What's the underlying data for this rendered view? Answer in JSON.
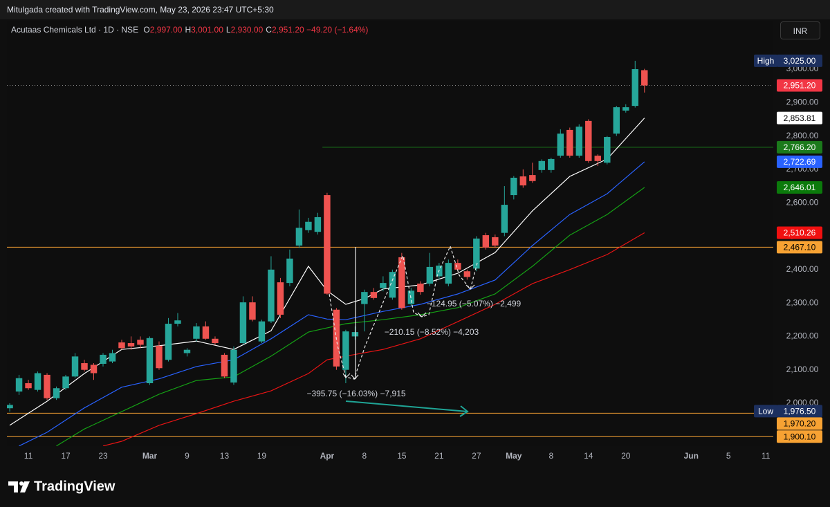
{
  "header": {
    "caption": "Mitulgada created with TradingView.com, May 23, 2026 23:47 UTC+5:30"
  },
  "legend": {
    "symbol": "Acutaas Chemicals Ltd · 1D · NSE",
    "ohlc": [
      {
        "key": "O",
        "value": "2,997.00"
      },
      {
        "key": "H",
        "value": "3,001.00"
      },
      {
        "key": "L",
        "value": "2,930.00"
      },
      {
        "key": "C",
        "value": "2,951.20"
      }
    ],
    "change": "−49.20 (−1.64%)"
  },
  "currency": "INR",
  "brand": "TradingView",
  "chart_data": {
    "type": "candlestick",
    "up_color": "#26a69a",
    "down_color": "#ef5350",
    "categories": [
      null,
      null,
      "11",
      null,
      null,
      null,
      "17",
      null,
      null,
      null,
      "23",
      null,
      null,
      null,
      null,
      "Mar",
      null,
      null,
      null,
      "9",
      null,
      null,
      null,
      "13",
      null,
      null,
      null,
      "19",
      null,
      null,
      null,
      null,
      null,
      null,
      "Apr",
      null,
      null,
      null,
      "8",
      null,
      null,
      null,
      "15",
      null,
      null,
      null,
      "21",
      null,
      null,
      null,
      "27",
      null,
      null,
      null,
      "May",
      null,
      null,
      null,
      "8",
      null,
      null,
      null,
      "14",
      null,
      null,
      null,
      "20",
      null,
      null,
      null,
      null,
      null,
      null,
      "Jun",
      null,
      null,
      null,
      "5",
      null,
      null,
      null,
      "11"
    ],
    "open": [
      1985,
      2035,
      2060,
      2040,
      2085,
      2015,
      2045,
      2080,
      2120,
      2115,
      2118,
      2125,
      2182,
      2180,
      2190,
      2060,
      2172,
      2130,
      2238,
      2150,
      2193,
      2230,
      2193,
      2145,
      2062,
      2180,
      2302,
      2185,
      2245,
      2362,
      2360,
      2472,
      2518,
      2513,
      2623,
      2280,
      2100,
      2200,
      2297,
      2333,
      2345,
      2316,
      2437,
      2297,
      2358,
      2358,
      2380,
      2358,
      2420,
      2395,
      2403,
      2503,
      2497,
      2510,
      2623,
      2679,
      2683,
      2698,
      2698,
      2741,
      2818,
      2741,
      2845,
      2741,
      2720,
      2807,
      2876,
      2890,
      2997,
      null,
      null,
      null,
      null,
      null,
      null,
      null,
      null,
      null,
      null,
      null,
      null,
      null
    ],
    "high": [
      2000,
      2085,
      2070,
      2095,
      2090,
      2050,
      2085,
      2150,
      2130,
      2120,
      2150,
      2160,
      2190,
      2200,
      2200,
      2200,
      2185,
      2255,
      2270,
      2165,
      2240,
      2245,
      2200,
      2150,
      2170,
      2320,
      2320,
      2250,
      2440,
      2375,
      2460,
      2580,
      2555,
      2570,
      2630,
      2285,
      2220,
      2230,
      2340,
      2345,
      2380,
      2400,
      2450,
      2345,
      2365,
      2450,
      2420,
      2430,
      2430,
      2400,
      2500,
      2510,
      2505,
      2650,
      2680,
      2700,
      2720,
      2730,
      2735,
      2820,
      2825,
      2835,
      2850,
      2745,
      2800,
      2890,
      2895,
      3025,
      3001,
      null,
      null,
      null,
      null,
      null,
      null,
      null,
      null,
      null,
      null,
      null,
      null,
      null
    ],
    "low": [
      1975,
      2025,
      2040,
      2035,
      2010,
      2010,
      2040,
      2075,
      2095,
      2070,
      2110,
      2120,
      2160,
      2160,
      2165,
      2055,
      2100,
      2125,
      2230,
      2140,
      2185,
      2190,
      2175,
      2075,
      2055,
      2175,
      2245,
      2180,
      2240,
      2255,
      2350,
      2465,
      2510,
      2505,
      2325,
      2100,
      2060,
      2190,
      2215,
      2310,
      2335,
      2310,
      2280,
      2290,
      2325,
      2350,
      2370,
      2350,
      2395,
      2370,
      2395,
      2460,
      2465,
      2500,
      2610,
      2645,
      2660,
      2690,
      2690,
      2735,
      2735,
      2735,
      2720,
      2710,
      2715,
      2800,
      2870,
      2885,
      2930,
      null,
      null,
      null,
      null,
      null,
      null,
      null,
      null,
      null,
      null,
      null,
      null,
      null
    ],
    "close": [
      1995,
      2075,
      2045,
      2090,
      2015,
      2045,
      2080,
      2140,
      2100,
      2090,
      2145,
      2150,
      2165,
      2170,
      2175,
      2195,
      2105,
      2238,
      2248,
      2160,
      2230,
      2193,
      2180,
      2080,
      2160,
      2302,
      2250,
      2245,
      2400,
      2265,
      2433,
      2525,
      2543,
      2557,
      2328,
      2110,
      2215,
      2213,
      2333,
      2315,
      2360,
      2393,
      2285,
      2337,
      2333,
      2408,
      2412,
      2420,
      2400,
      2378,
      2493,
      2466,
      2472,
      2594,
      2675,
      2652,
      2665,
      2725,
      2731,
      2807,
      2741,
      2828,
      2725,
      2725,
      2797,
      2886,
      2886,
      3000,
      2951.2,
      null,
      null,
      null,
      null,
      null,
      null,
      null,
      null,
      null,
      null,
      null,
      null,
      null
    ],
    "series": [
      {
        "color": "#ffffff",
        "x": [
          0,
          4,
          8,
          12,
          16,
          20,
          24,
          28,
          32,
          34,
          36,
          38,
          40,
          44,
          48,
          52,
          56,
          60,
          64,
          68
        ],
        "values": [
          1934,
          2006,
          2089,
          2161,
          2172,
          2186,
          2161,
          2217,
          2410,
          2337,
          2296,
          2313,
          2342,
          2354,
          2389,
          2451,
          2576,
          2679,
          2731,
          2853.81
        ]
      },
      {
        "color": "#2962ff",
        "x": [
          1,
          4,
          8,
          12,
          16,
          20,
          24,
          28,
          32,
          34,
          36,
          40,
          44,
          48,
          52,
          56,
          60,
          64,
          68
        ],
        "values": [
          1872,
          1913,
          1986,
          2048,
          2073,
          2110,
          2130,
          2193,
          2265,
          2252,
          2250,
          2275,
          2296,
          2327,
          2369,
          2472,
          2565,
          2627,
          2722.69
        ]
      },
      {
        "color": "#15a015",
        "x": [
          5,
          8,
          12,
          16,
          20,
          24,
          28,
          32,
          36,
          40,
          44,
          48,
          52,
          56,
          60,
          64,
          68
        ],
        "values": [
          1872,
          1923,
          1975,
          2027,
          2068,
          2079,
          2141,
          2213,
          2238,
          2250,
          2265,
          2286,
          2327,
          2410,
          2503,
          2565,
          2646.01
        ]
      },
      {
        "color": "#e81414",
        "x": [
          10,
          12,
          16,
          20,
          24,
          28,
          32,
          34,
          36,
          40,
          44,
          48,
          52,
          56,
          60,
          64,
          68
        ],
        "values": [
          1872,
          1886,
          1934,
          1969,
          2006,
          2037,
          2089,
          2130,
          2141,
          2161,
          2193,
          2244,
          2296,
          2358,
          2400,
          2445,
          2510.26
        ]
      }
    ],
    "xlim": [
      -0.3,
      81.8
    ],
    "ylim": [
      1871.6,
      3144.9
    ],
    "yticks": [
      {
        "value": 2000,
        "label": "2,000.00"
      },
      {
        "value": 2100,
        "label": "2,100.00"
      },
      {
        "value": 2200,
        "label": "2,200.00"
      },
      {
        "value": 2300,
        "label": "2,300.00"
      },
      {
        "value": 2400,
        "label": "2,400.00"
      },
      {
        "value": 2500,
        "label": "2,500.00"
      },
      {
        "value": 2600,
        "label": "2,600.00"
      },
      {
        "value": 2700,
        "label": "2,700.00"
      },
      {
        "value": 2800,
        "label": "2,800.00"
      },
      {
        "value": 2900,
        "label": "2,900.00"
      },
      {
        "value": 3000,
        "label": "3,000.00"
      }
    ],
    "grid": false,
    "price_levels": [
      {
        "value": 3025,
        "label": "3,025.00",
        "tag": "High",
        "color": "#1c2f5e",
        "text_color": "#ffffff"
      },
      {
        "value": 2951.2,
        "label": "2,951.20",
        "color": "#f23645",
        "text_color": "#ffffff",
        "line": "dotted"
      },
      {
        "value": 2853.81,
        "label": "2,853.81",
        "color": "#ffffff",
        "text_color": "#000000"
      },
      {
        "value": 2766.2,
        "label": "2,766.20",
        "color": "#1b7a1b",
        "text_color": "#ffffff",
        "line": "ray"
      },
      {
        "value": 2722.69,
        "label": "2,722.69",
        "color": "#2962ff",
        "text_color": "#ffffff"
      },
      {
        "value": 2646.01,
        "label": "2,646.01",
        "color": "#0b7a0b",
        "text_color": "#ffffff"
      },
      {
        "value": 2510.26,
        "label": "2,510.26",
        "color": "#f01010",
        "text_color": "#ffffff"
      },
      {
        "value": 2467.1,
        "label": "2,467.10",
        "color": "#f7a233",
        "text_color": "#000000",
        "line": "full"
      },
      {
        "value": 1976.5,
        "label": "1,976.50",
        "tag": "Low",
        "color": "#1c2f5e",
        "text_color": "#ffffff"
      },
      {
        "value": 1970.2,
        "label": "1,970.20",
        "color": "#f7a233",
        "text_color": "#000000",
        "line": "full"
      },
      {
        "value": 1900.1,
        "label": "1,900.10",
        "color": "#f7a233",
        "text_color": "#000000",
        "line": "full"
      }
    ],
    "annotations": [
      "−395.75 (−16.03%) −7,915",
      "−210.15 (−8.52%) −4,203",
      "−124.95 (−5.07%) −2,499"
    ]
  }
}
